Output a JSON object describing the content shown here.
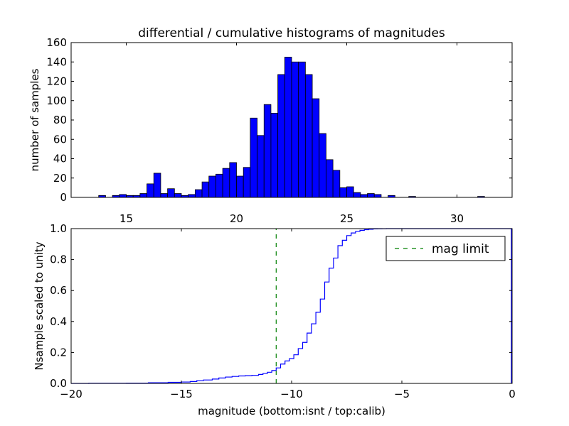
{
  "chart_data": [
    {
      "type": "bar",
      "title": "differential / cumulative histograms of magnitudes",
      "xlabel": "",
      "ylabel": "number of samples",
      "xlim": [
        12.5,
        32.5
      ],
      "ylim": [
        0,
        160
      ],
      "xticks": [
        15,
        20,
        25,
        30
      ],
      "xtick_labels": [
        "15",
        "20",
        "25",
        "30"
      ],
      "yticks": [
        0,
        20,
        40,
        60,
        80,
        100,
        120,
        140,
        160
      ],
      "ytick_labels": [
        "0",
        "20",
        "40",
        "60",
        "80",
        "100",
        "120",
        "140",
        "160"
      ],
      "x_axis_position": "top",
      "bar_color": "#0000ff",
      "bin_start": 12.5,
      "bin_width": 0.3125,
      "values": [
        0,
        0,
        0,
        0,
        2,
        0,
        2,
        3,
        2,
        2,
        4,
        14,
        25,
        4,
        9,
        4,
        2,
        3,
        8,
        16,
        22,
        24,
        30,
        36,
        22,
        31,
        82,
        64,
        96,
        87,
        127,
        145,
        140,
        140,
        127,
        102,
        66,
        39,
        28,
        10,
        11,
        5,
        3,
        4,
        3,
        0,
        2,
        0,
        0,
        1,
        0,
        0,
        0,
        0,
        0,
        0,
        0,
        0,
        0,
        1,
        0,
        0,
        0,
        0
      ]
    },
    {
      "type": "line",
      "xlabel": "magnitude (bottom:isnt / top:calib)",
      "ylabel": "Nsample scaled to unity",
      "xlim": [
        -20,
        0
      ],
      "ylim": [
        0,
        1.0
      ],
      "xticks": [
        -20,
        -15,
        -10,
        -5,
        0
      ],
      "xtick_labels": [
        "−20",
        "−15",
        "−10",
        "−5",
        "0"
      ],
      "yticks": [
        0,
        0.2,
        0.4,
        0.6,
        0.8,
        1.0
      ],
      "ytick_labels": [
        "0.0",
        "0.2",
        "0.4",
        "0.6",
        "0.8",
        "1.0"
      ],
      "legend": {
        "position": "top-right",
        "entries": [
          "mag limit"
        ]
      },
      "series": [
        {
          "name": "",
          "style": "step",
          "color": "#0000ff",
          "x": [
            -20,
            -19.2,
            -17.5,
            -16.5,
            -15.6,
            -15,
            -14.6,
            -14.3,
            -14,
            -13.6,
            -13.3,
            -13,
            -12.7,
            -12.4,
            -12.1,
            -11.8,
            -11.5,
            -11.3,
            -11.1,
            -10.9,
            -10.7,
            -10.5,
            -10.3,
            -10.1,
            -9.9,
            -9.7,
            -9.5,
            -9.3,
            -9.1,
            -8.9,
            -8.7,
            -8.5,
            -8.3,
            -8.1,
            -7.9,
            -7.7,
            -7.5,
            -7.3,
            -7.1,
            -6.9,
            -6.7,
            -6.5,
            -6.3,
            -6.1,
            -5.9,
            -5.7,
            -5.5,
            0
          ],
          "y": [
            0,
            0.001,
            0.002,
            0.004,
            0.007,
            0.009,
            0.012,
            0.018,
            0.022,
            0.028,
            0.035,
            0.041,
            0.045,
            0.048,
            0.05,
            0.052,
            0.058,
            0.064,
            0.072,
            0.083,
            0.1,
            0.125,
            0.145,
            0.16,
            0.185,
            0.225,
            0.265,
            0.325,
            0.385,
            0.46,
            0.545,
            0.655,
            0.745,
            0.81,
            0.89,
            0.925,
            0.955,
            0.972,
            0.982,
            0.989,
            0.993,
            0.996,
            0.998,
            0.999,
            0.9995,
            1.0,
            1.0,
            1.0
          ]
        },
        {
          "name": "mag limit",
          "style": "dashed",
          "color": "#008000",
          "x": [
            -10.7,
            -10.7
          ],
          "y": [
            0,
            1.0
          ]
        }
      ]
    }
  ]
}
